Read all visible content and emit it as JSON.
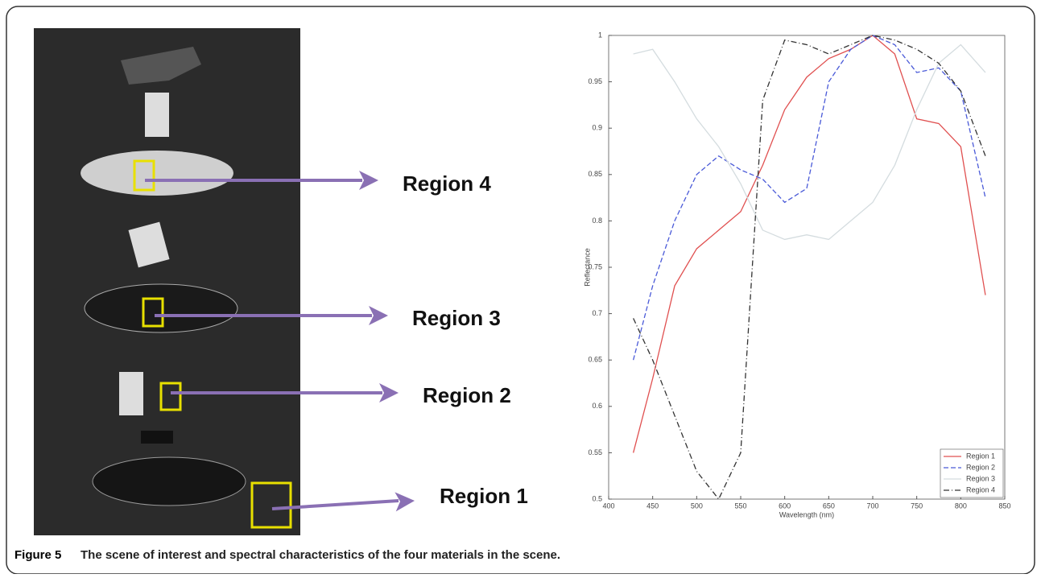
{
  "scene": {
    "labels": [
      "Region 4",
      "Region 3",
      "Region 2",
      "Region 1"
    ]
  },
  "caption": {
    "label": "Figure 5",
    "text": "The scene of interest and spectral characteristics of the four materials in the scene."
  },
  "chart_data": {
    "type": "line",
    "x_label": "Wavelength (nm)",
    "y_label": "Reflectance",
    "x": [
      428,
      450,
      475,
      500,
      525,
      550,
      575,
      600,
      625,
      650,
      675,
      700,
      725,
      750,
      775,
      800,
      828
    ],
    "series": [
      {
        "name": "Region 1",
        "color": "#e05050",
        "style": "solid",
        "values": [
          0.55,
          0.63,
          0.73,
          0.77,
          0.79,
          0.81,
          0.86,
          0.92,
          0.955,
          0.975,
          0.985,
          1.0,
          0.98,
          0.91,
          0.905,
          0.88,
          0.72
        ]
      },
      {
        "name": "Region 2",
        "color": "#4a5ad8",
        "style": "dashed",
        "values": [
          0.65,
          0.73,
          0.8,
          0.85,
          0.87,
          0.855,
          0.845,
          0.82,
          0.835,
          0.95,
          0.985,
          1.0,
          0.99,
          0.96,
          0.965,
          0.94,
          0.825
        ]
      },
      {
        "name": "Region 3",
        "color": "#d4dcdf",
        "style": "solid",
        "values": [
          0.98,
          0.985,
          0.95,
          0.91,
          0.88,
          0.84,
          0.79,
          0.78,
          0.785,
          0.78,
          0.8,
          0.82,
          0.86,
          0.92,
          0.97,
          0.99,
          0.96
        ]
      },
      {
        "name": "Region 4",
        "color": "#333333",
        "style": "dashdot",
        "values": [
          0.695,
          0.65,
          0.59,
          0.53,
          0.5,
          0.55,
          0.93,
          0.995,
          0.99,
          0.98,
          0.99,
          1.0,
          0.995,
          0.985,
          0.97,
          0.94,
          0.87
        ]
      }
    ],
    "xlim": [
      400,
      850
    ],
    "xticks": [
      400,
      450,
      500,
      550,
      600,
      650,
      700,
      750,
      800,
      850
    ],
    "ylim": [
      0.5,
      1
    ],
    "yticks": [
      0.5,
      0.55,
      0.6,
      0.65,
      0.7,
      0.75,
      0.8,
      0.85,
      0.9,
      0.95,
      1
    ],
    "legend": "lower right"
  }
}
